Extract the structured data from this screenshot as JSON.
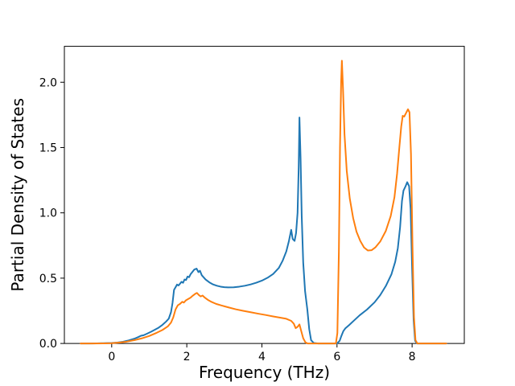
{
  "figure": {
    "background": "#ffffff"
  },
  "chart_data": {
    "type": "line",
    "title": "",
    "xlabel": "Frequency (THz)",
    "ylabel": "Partial Density of States",
    "xlim": [
      -1.26,
      9.39
    ],
    "ylim": [
      0,
      2.275
    ],
    "grid": false,
    "legend": "none",
    "xticks": {
      "values": [
        0,
        2,
        4,
        6,
        8
      ],
      "labels": [
        "0",
        "2",
        "4",
        "6",
        "8"
      ]
    },
    "yticks": {
      "values": [
        0,
        0.5,
        1.0,
        1.5,
        2.0
      ],
      "labels": [
        "0.0",
        "0.5",
        "1.0",
        "1.5",
        "2.0"
      ]
    },
    "series": [
      {
        "name": "pdos-series-blue",
        "color": "#1f77b4",
        "points": [
          [
            -0.83,
            0
          ],
          [
            -0.6,
            0
          ],
          [
            -0.4,
            0.001
          ],
          [
            -0.2,
            0.002
          ],
          [
            0,
            0.004
          ],
          [
            0.15,
            0.007
          ],
          [
            0.3,
            0.013
          ],
          [
            0.45,
            0.023
          ],
          [
            0.6,
            0.036
          ],
          [
            0.7,
            0.048
          ],
          [
            0.78,
            0.059
          ],
          [
            0.85,
            0.063
          ],
          [
            0.95,
            0.076
          ],
          [
            1.05,
            0.09
          ],
          [
            1.15,
            0.105
          ],
          [
            1.25,
            0.121
          ],
          [
            1.35,
            0.142
          ],
          [
            1.45,
            0.168
          ],
          [
            1.52,
            0.19
          ],
          [
            1.58,
            0.24
          ],
          [
            1.62,
            0.31
          ],
          [
            1.66,
            0.41
          ],
          [
            1.7,
            0.43
          ],
          [
            1.74,
            0.451
          ],
          [
            1.78,
            0.444
          ],
          [
            1.82,
            0.458
          ],
          [
            1.86,
            0.472
          ],
          [
            1.9,
            0.464
          ],
          [
            1.94,
            0.49
          ],
          [
            1.98,
            0.486
          ],
          [
            2.02,
            0.512
          ],
          [
            2.06,
            0.507
          ],
          [
            2.1,
            0.53
          ],
          [
            2.15,
            0.548
          ],
          [
            2.2,
            0.566
          ],
          [
            2.26,
            0.573
          ],
          [
            2.31,
            0.546
          ],
          [
            2.35,
            0.557
          ],
          [
            2.4,
            0.522
          ],
          [
            2.5,
            0.49
          ],
          [
            2.6,
            0.468
          ],
          [
            2.7,
            0.452
          ],
          [
            2.8,
            0.442
          ],
          [
            2.9,
            0.435
          ],
          [
            3.0,
            0.431
          ],
          [
            3.1,
            0.429
          ],
          [
            3.25,
            0.43
          ],
          [
            3.4,
            0.435
          ],
          [
            3.55,
            0.442
          ],
          [
            3.7,
            0.452
          ],
          [
            3.85,
            0.465
          ],
          [
            4.0,
            0.481
          ],
          [
            4.15,
            0.503
          ],
          [
            4.3,
            0.532
          ],
          [
            4.45,
            0.578
          ],
          [
            4.55,
            0.632
          ],
          [
            4.65,
            0.705
          ],
          [
            4.72,
            0.785
          ],
          [
            4.78,
            0.87
          ],
          [
            4.82,
            0.8
          ],
          [
            4.87,
            0.785
          ],
          [
            4.91,
            0.845
          ],
          [
            4.95,
            1.0
          ],
          [
            4.98,
            1.35
          ],
          [
            5.0,
            1.73
          ],
          [
            5.03,
            1.42
          ],
          [
            5.06,
            0.98
          ],
          [
            5.1,
            0.62
          ],
          [
            5.15,
            0.4
          ],
          [
            5.21,
            0.26
          ],
          [
            5.26,
            0.11
          ],
          [
            5.31,
            0.025
          ],
          [
            5.38,
            0.004
          ],
          [
            5.5,
            0
          ],
          [
            5.75,
            0
          ],
          [
            6.0,
            0
          ],
          [
            6.07,
            0.02
          ],
          [
            6.12,
            0.06
          ],
          [
            6.17,
            0.095
          ],
          [
            6.22,
            0.115
          ],
          [
            6.32,
            0.14
          ],
          [
            6.45,
            0.175
          ],
          [
            6.6,
            0.215
          ],
          [
            6.8,
            0.26
          ],
          [
            7.0,
            0.315
          ],
          [
            7.15,
            0.37
          ],
          [
            7.3,
            0.44
          ],
          [
            7.45,
            0.53
          ],
          [
            7.55,
            0.625
          ],
          [
            7.62,
            0.73
          ],
          [
            7.68,
            0.89
          ],
          [
            7.73,
            1.09
          ],
          [
            7.77,
            1.17
          ],
          [
            7.82,
            1.2
          ],
          [
            7.87,
            1.235
          ],
          [
            7.92,
            1.205
          ],
          [
            7.96,
            1.03
          ],
          [
            8.0,
            0.58
          ],
          [
            8.04,
            0.18
          ],
          [
            8.08,
            0.02
          ],
          [
            8.13,
            0
          ],
          [
            8.5,
            0
          ],
          [
            8.91,
            0
          ]
        ]
      },
      {
        "name": "pdos-series-orange",
        "color": "#ff7f0e",
        "points": [
          [
            -0.83,
            0
          ],
          [
            -0.5,
            0
          ],
          [
            -0.2,
            0.001
          ],
          [
            0,
            0.002
          ],
          [
            0.2,
            0.007
          ],
          [
            0.4,
            0.014
          ],
          [
            0.6,
            0.025
          ],
          [
            0.8,
            0.039
          ],
          [
            1.0,
            0.057
          ],
          [
            1.2,
            0.082
          ],
          [
            1.35,
            0.103
          ],
          [
            1.5,
            0.132
          ],
          [
            1.58,
            0.16
          ],
          [
            1.64,
            0.2
          ],
          [
            1.7,
            0.26
          ],
          [
            1.76,
            0.292
          ],
          [
            1.82,
            0.303
          ],
          [
            1.88,
            0.319
          ],
          [
            1.92,
            0.313
          ],
          [
            1.98,
            0.331
          ],
          [
            2.04,
            0.341
          ],
          [
            2.1,
            0.351
          ],
          [
            2.16,
            0.366
          ],
          [
            2.22,
            0.379
          ],
          [
            2.27,
            0.387
          ],
          [
            2.32,
            0.371
          ],
          [
            2.37,
            0.36
          ],
          [
            2.42,
            0.367
          ],
          [
            2.48,
            0.351
          ],
          [
            2.56,
            0.334
          ],
          [
            2.66,
            0.318
          ],
          [
            2.78,
            0.303
          ],
          [
            2.92,
            0.291
          ],
          [
            3.1,
            0.277
          ],
          [
            3.3,
            0.262
          ],
          [
            3.5,
            0.25
          ],
          [
            3.7,
            0.239
          ],
          [
            3.9,
            0.228
          ],
          [
            4.1,
            0.218
          ],
          [
            4.3,
            0.207
          ],
          [
            4.5,
            0.197
          ],
          [
            4.65,
            0.189
          ],
          [
            4.78,
            0.173
          ],
          [
            4.85,
            0.151
          ],
          [
            4.9,
            0.117
          ],
          [
            4.95,
            0.127
          ],
          [
            5.0,
            0.146
          ],
          [
            5.05,
            0.092
          ],
          [
            5.1,
            0.04
          ],
          [
            5.16,
            0.008
          ],
          [
            5.22,
            0
          ],
          [
            5.5,
            0
          ],
          [
            5.8,
            0
          ],
          [
            5.97,
            0
          ],
          [
            6.01,
            0.08
          ],
          [
            6.05,
            0.7
          ],
          [
            6.08,
            1.5
          ],
          [
            6.11,
            2.0
          ],
          [
            6.13,
            2.165
          ],
          [
            6.16,
            1.95
          ],
          [
            6.2,
            1.6
          ],
          [
            6.26,
            1.32
          ],
          [
            6.34,
            1.11
          ],
          [
            6.43,
            0.96
          ],
          [
            6.52,
            0.855
          ],
          [
            6.62,
            0.785
          ],
          [
            6.72,
            0.735
          ],
          [
            6.82,
            0.712
          ],
          [
            6.92,
            0.714
          ],
          [
            7.02,
            0.735
          ],
          [
            7.15,
            0.78
          ],
          [
            7.3,
            0.862
          ],
          [
            7.43,
            0.975
          ],
          [
            7.53,
            1.12
          ],
          [
            7.6,
            1.3
          ],
          [
            7.66,
            1.5
          ],
          [
            7.71,
            1.66
          ],
          [
            7.75,
            1.743
          ],
          [
            7.79,
            1.737
          ],
          [
            7.84,
            1.765
          ],
          [
            7.89,
            1.793
          ],
          [
            7.93,
            1.77
          ],
          [
            7.97,
            1.45
          ],
          [
            8.01,
            0.75
          ],
          [
            8.05,
            0.2
          ],
          [
            8.09,
            0.025
          ],
          [
            8.14,
            0
          ],
          [
            8.5,
            0
          ],
          [
            8.91,
            0
          ]
        ]
      }
    ]
  }
}
